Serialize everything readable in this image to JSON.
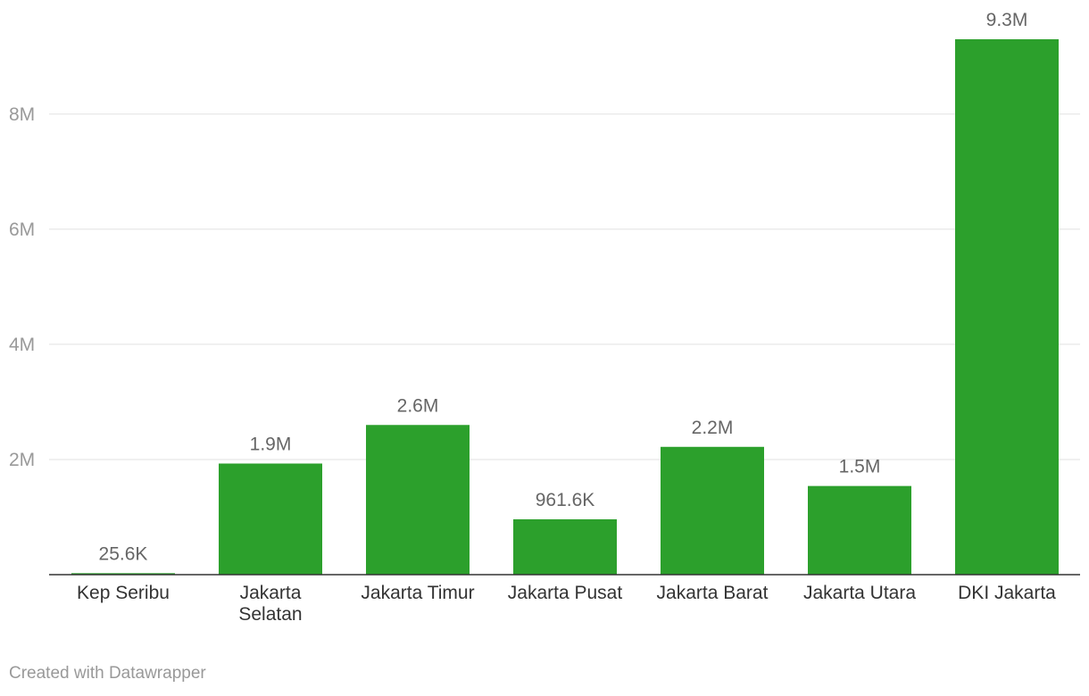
{
  "chart_data": {
    "type": "bar",
    "categories": [
      [
        "Kep Seribu"
      ],
      [
        "Jakarta",
        "Selatan"
      ],
      [
        "Jakarta Timur"
      ],
      [
        "Jakarta Pusat"
      ],
      [
        "Jakarta Barat"
      ],
      [
        "Jakarta Utara"
      ],
      [
        "DKI Jakarta"
      ]
    ],
    "values": [
      25600,
      1930000,
      2600000,
      961600,
      2220000,
      1540000,
      9300000
    ],
    "value_labels": [
      "25.6K",
      "1.9M",
      "2.6M",
      "961.6K",
      "2.2M",
      "1.5M",
      "9.3M"
    ],
    "y_ticks": [
      2000000,
      4000000,
      6000000,
      8000000
    ],
    "y_tick_labels": [
      "2M",
      "4M",
      "6M",
      "8M"
    ],
    "ylim": [
      0,
      9300000
    ],
    "grid": true,
    "bar_color": "#2ca02c"
  },
  "footer": "Created with Datawrapper"
}
